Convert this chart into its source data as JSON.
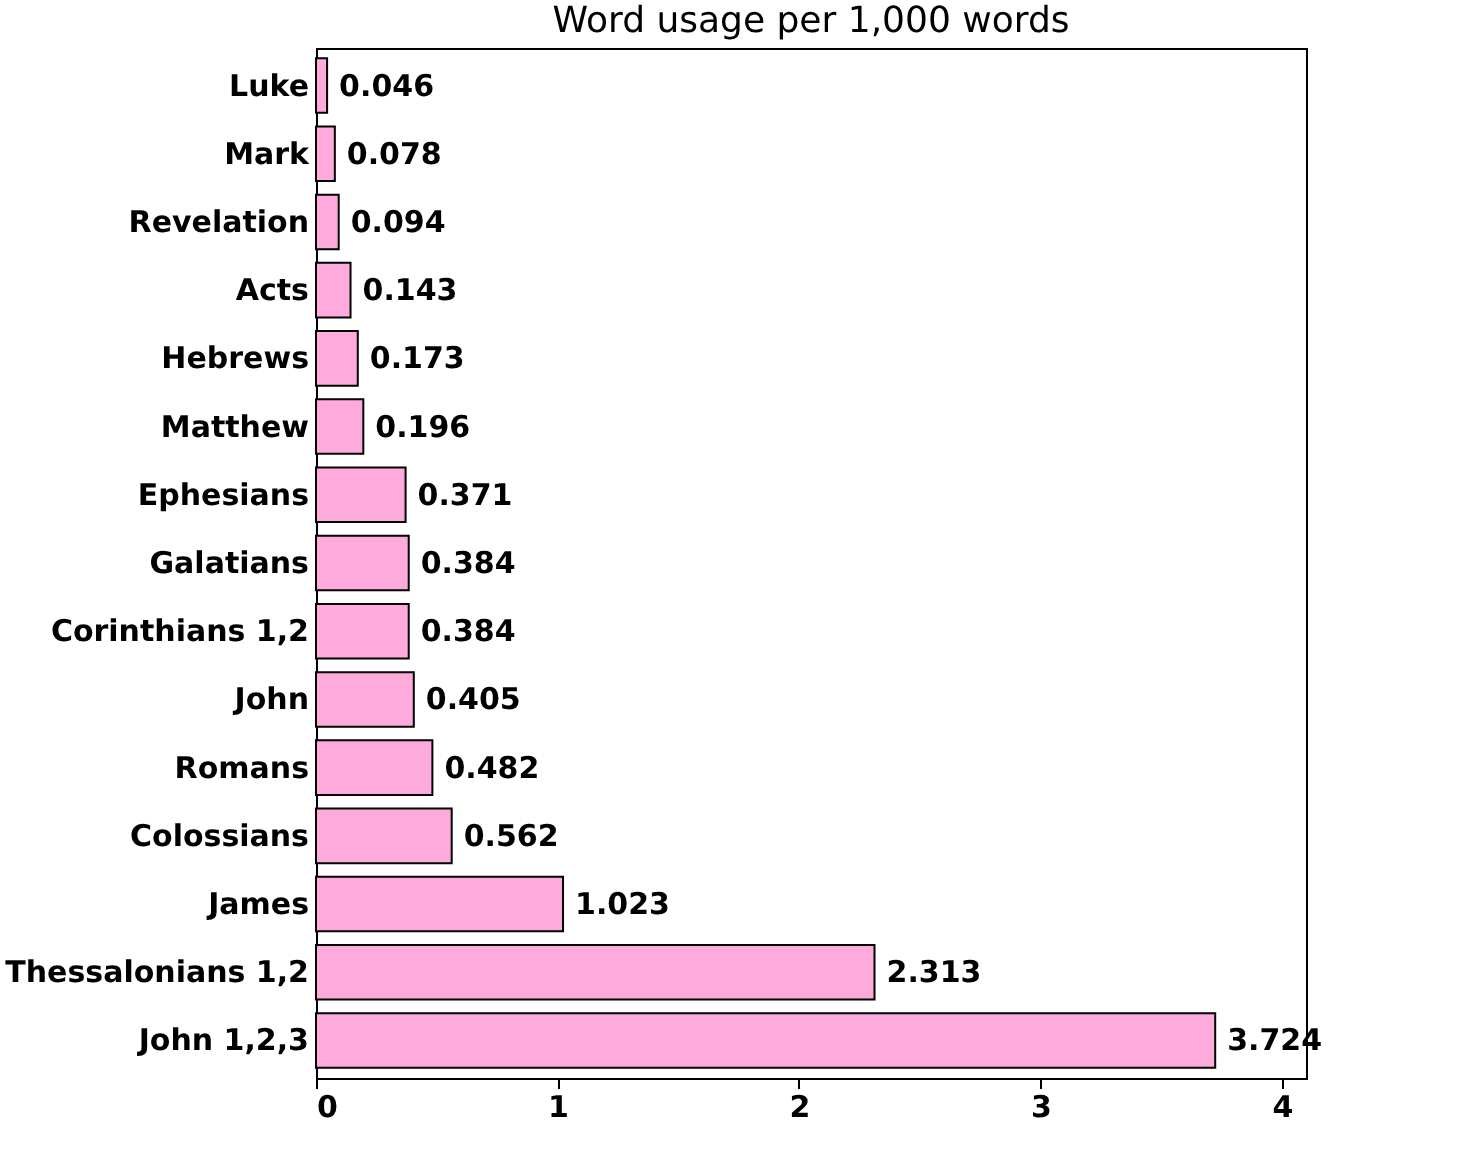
{
  "chart_data": {
    "type": "bar",
    "orientation": "horizontal",
    "title": "Word usage per 1,000 words",
    "categories": [
      "Luke",
      "Mark",
      "Revelation",
      "Acts",
      "Hebrews",
      "Matthew",
      "Ephesians",
      "Galatians",
      "Corinthians 1,2",
      "John",
      "Romans",
      "Colossians",
      "James",
      "Thessalonians 1,2",
      "John 1,2,3"
    ],
    "values": [
      0.046,
      0.078,
      0.094,
      0.143,
      0.173,
      0.196,
      0.371,
      0.384,
      0.384,
      0.405,
      0.482,
      0.562,
      1.023,
      2.313,
      3.724
    ],
    "color": "#ffaadd",
    "xlim": [
      0,
      4.1
    ],
    "xticks": [
      0,
      1,
      2,
      3,
      4
    ],
    "grid": false,
    "data_labels": true
  }
}
